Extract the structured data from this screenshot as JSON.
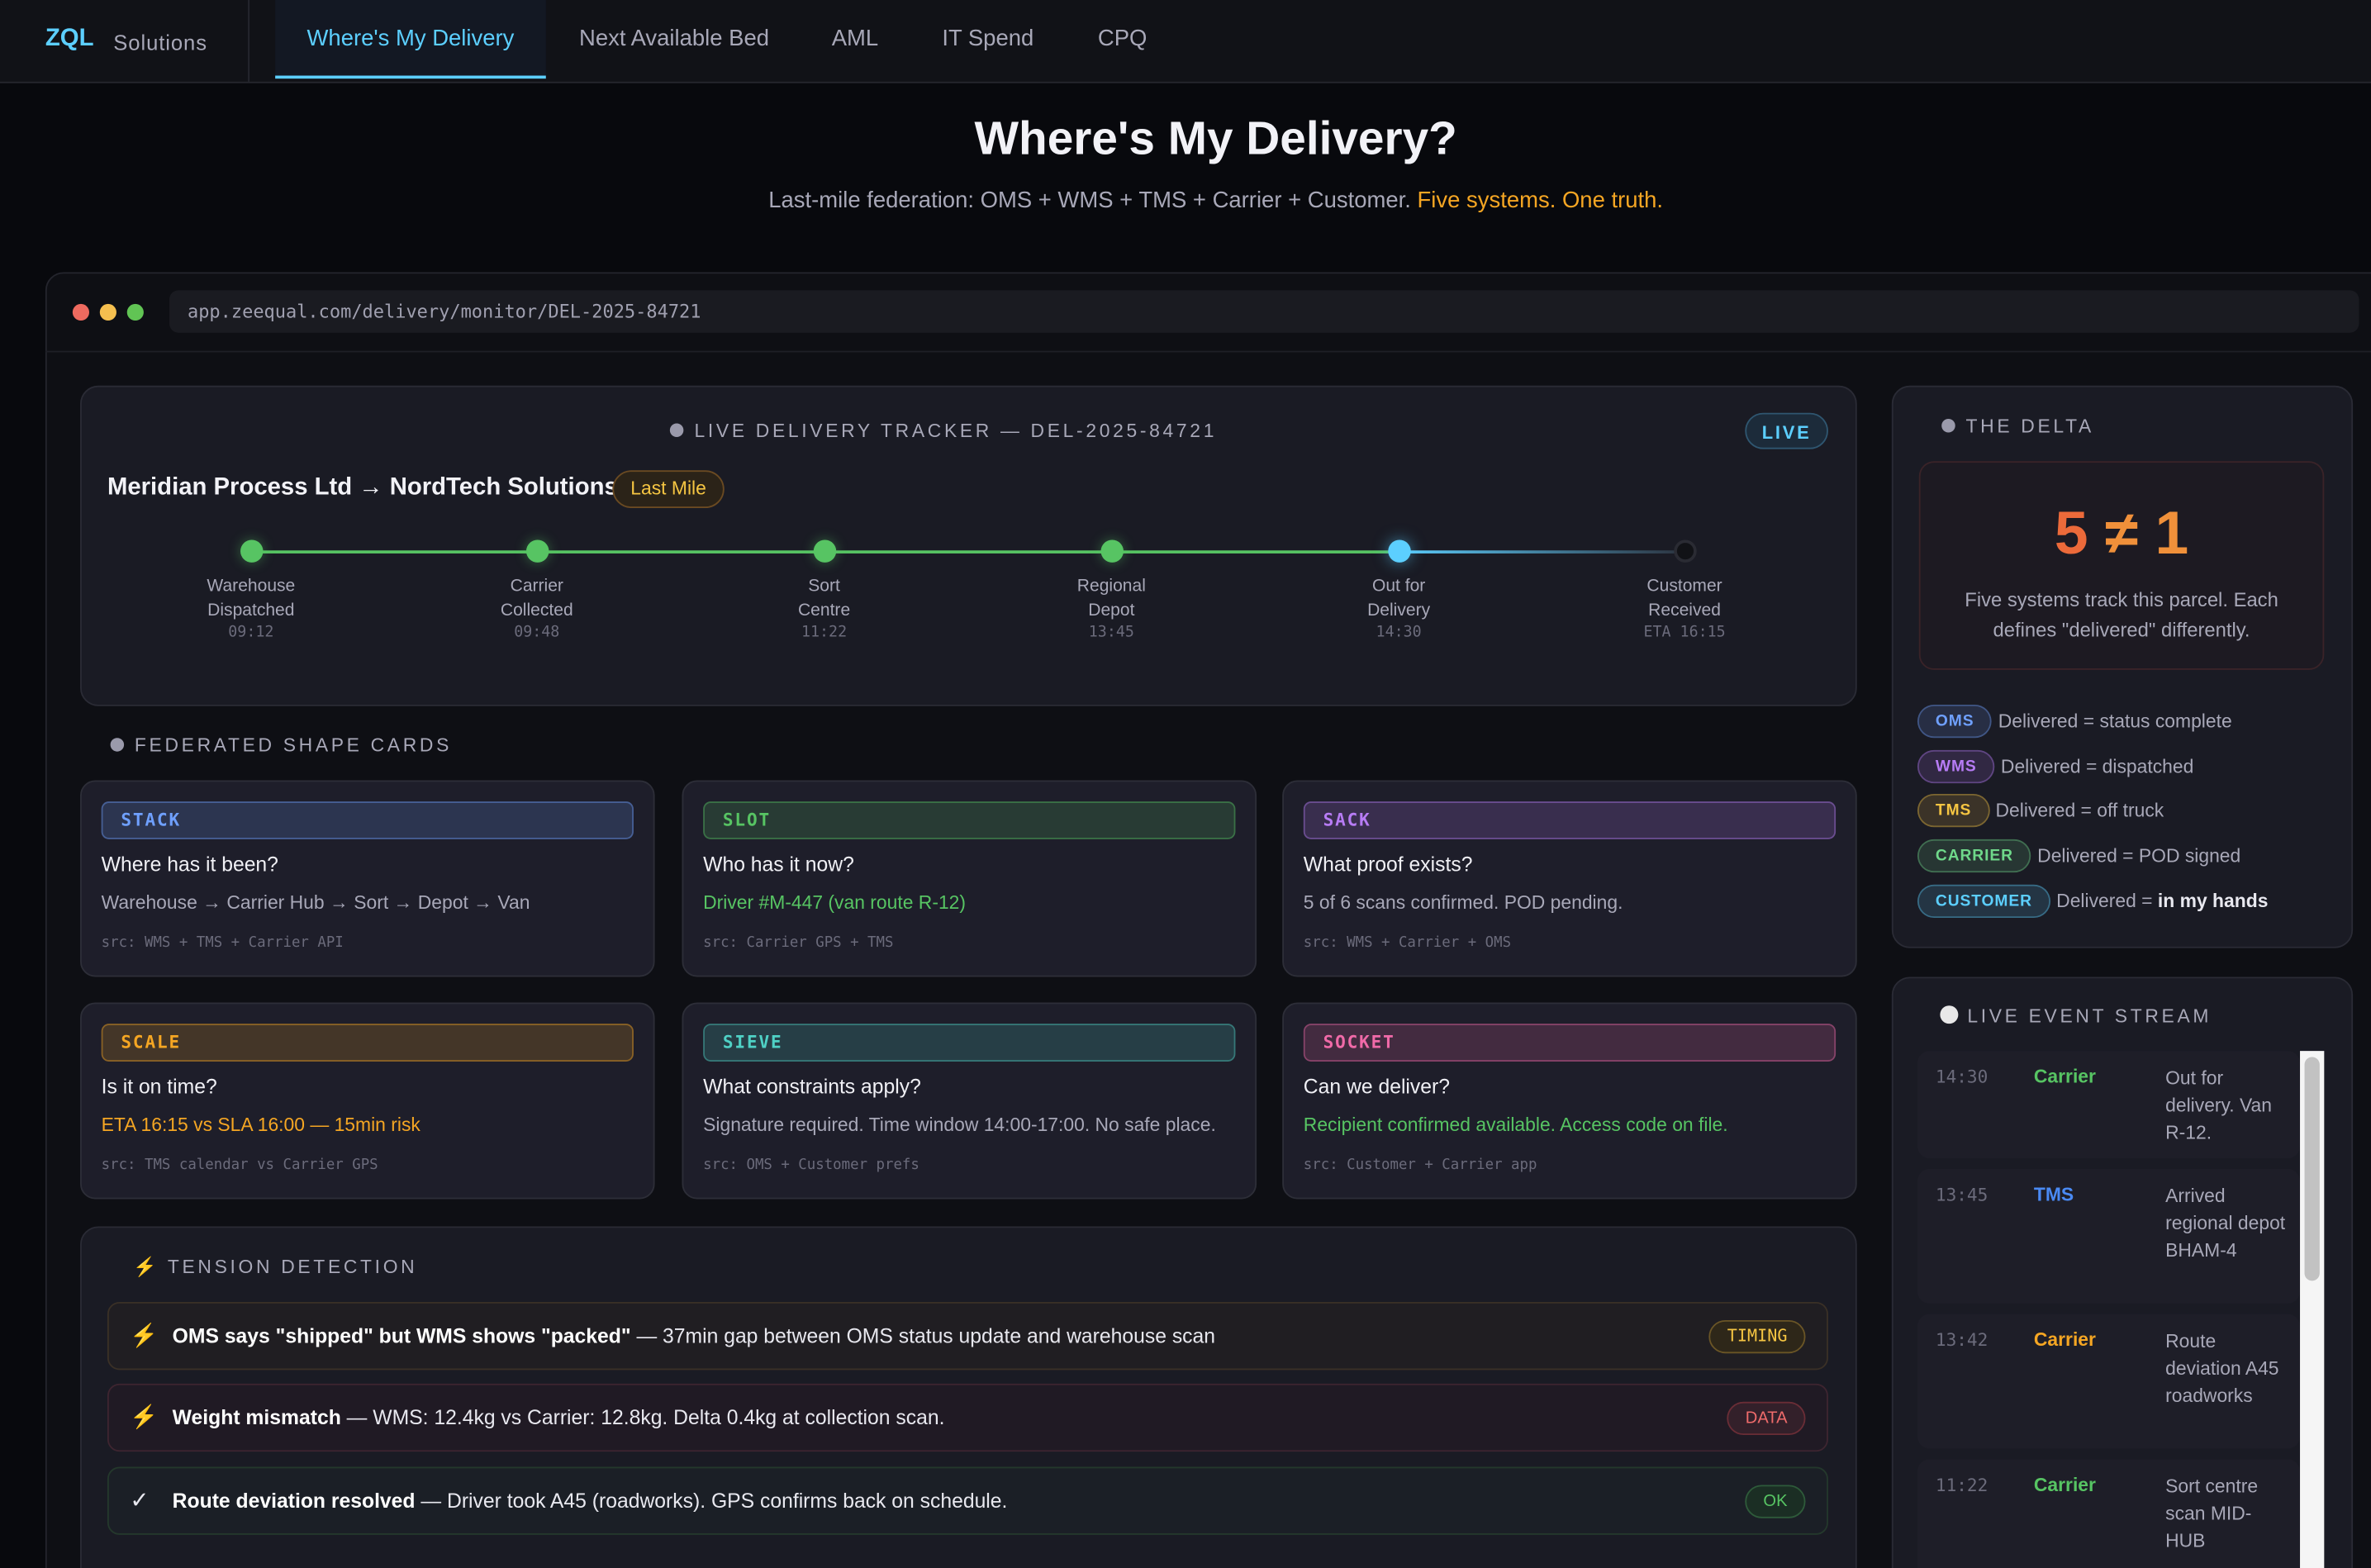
{
  "nav": {
    "logo": "ZQL",
    "logo_sub": "Solutions",
    "tabs": [
      "Where's My Delivery",
      "Next Available Bed",
      "AML",
      "IT Spend",
      "CPQ"
    ]
  },
  "header": {
    "title": "Where's My Delivery?",
    "subtitle": "Last-mile federation: OMS + WMS + TMS + Carrier + Customer.",
    "subtitle_highlight": "Five systems. One truth."
  },
  "browser": {
    "url": "app.zeequal.com/delivery/monitor/DEL-2025-84721"
  },
  "tracker": {
    "heading": "LIVE DELIVERY TRACKER — DEL-2025-84721",
    "live_badge": "LIVE",
    "route": "Meridian Process Ltd → NordTech Solutions",
    "route_badge": "Last Mile",
    "stages": [
      {
        "line1": "Warehouse",
        "line2": "Dispatched",
        "time": "09:12",
        "state": "done"
      },
      {
        "line1": "Carrier",
        "line2": "Collected",
        "time": "09:48",
        "state": "done"
      },
      {
        "line1": "Sort",
        "line2": "Centre",
        "time": "11:22",
        "state": "done"
      },
      {
        "line1": "Regional",
        "line2": "Depot",
        "time": "13:45",
        "state": "done"
      },
      {
        "line1": "Out for",
        "line2": "Delivery",
        "time": "14:30",
        "state": "current"
      },
      {
        "line1": "Customer",
        "line2": "Received",
        "time": "ETA 16:15",
        "state": "pending"
      }
    ]
  },
  "cards": {
    "heading": "FEDERATED SHAPE CARDS",
    "items": [
      {
        "tag": "STACK",
        "question": "Where has it been?",
        "detail": "Warehouse → Carrier Hub → Sort → Depot → Van",
        "src": "src: WMS + TMS + Carrier API",
        "color": "#6fa0ff"
      },
      {
        "tag": "SLOT",
        "question": "Who has it now?",
        "detail": "Driver #M-447 (van route R-12)",
        "src": "src: Carrier GPS + TMS",
        "color": "#57c463"
      },
      {
        "tag": "SACK",
        "question": "What proof exists?",
        "detail": "5 of 6 scans confirmed. POD pending.",
        "src": "src: WMS + Carrier + OMS",
        "color": "#b77cf5"
      },
      {
        "tag": "SCALE",
        "question": "Is it on time?",
        "detail": "ETA 16:15 vs SLA 16:00 — 15min risk",
        "src": "src: TMS calendar vs Carrier GPS",
        "color": "#f5a623"
      },
      {
        "tag": "SIEVE",
        "question": "What constraints apply?",
        "detail": "Signature required. Time window 14:00-17:00. No safe place.",
        "src": "src: OMS + Customer prefs",
        "color": "#4fd1c5"
      },
      {
        "tag": "SOCKET",
        "question": "Can we deliver?",
        "detail": "Recipient confirmed available. Access code on file.",
        "src": "src: Customer + Carrier app",
        "color": "#f06aa8"
      }
    ]
  },
  "tension": {
    "heading": "TENSION DETECTION",
    "rows": [
      {
        "icon": "⚡",
        "bold": "OMS says \"shipped\" but WMS shows \"packed\"",
        "text": " — 37min gap between OMS status update and warehouse scan",
        "badge": "TIMING"
      },
      {
        "icon": "⚡",
        "bold": "Weight mismatch",
        "text": " — WMS: 12.4kg vs Carrier: 12.8kg. Delta 0.4kg at collection scan.",
        "badge": "DATA"
      },
      {
        "icon": "✓",
        "bold": "Route deviation resolved",
        "text": " — Driver took A45 (roadworks). GPS confirms back on schedule.",
        "badge": "OK"
      }
    ]
  },
  "delta": {
    "heading": "THE DELTA",
    "left": "5",
    "op": "≠",
    "right": "1",
    "description": "Five systems track this parcel. Each defines \"delivered\" differently.",
    "legend": [
      {
        "system": "OMS",
        "text": "Delivered = status complete",
        "strong": ""
      },
      {
        "system": "WMS",
        "text": "Delivered = dispatched",
        "strong": ""
      },
      {
        "system": "TMS",
        "text": "Delivered = off truck",
        "strong": ""
      },
      {
        "system": "CARRIER",
        "text": "Delivered = POD signed",
        "strong": ""
      },
      {
        "system": "CUSTOMER",
        "text": "Delivered = ",
        "strong": "in my hands"
      }
    ]
  },
  "stream": {
    "heading": "LIVE EVENT STREAM",
    "events": [
      {
        "time": "14:30",
        "source": "Carrier",
        "text": "Out for delivery. Van R-12.",
        "color": "#57c463"
      },
      {
        "time": "13:45",
        "source": "TMS",
        "text": "Arrived regional depot BHAM-4",
        "color": "#4a8af4"
      },
      {
        "time": "13:42",
        "source": "Carrier",
        "text": "Route deviation A45 roadworks",
        "color": "#f5a623"
      },
      {
        "time": "11:22",
        "source": "Carrier",
        "text": "Sort centre scan MID-HUB",
        "color": "#57c463"
      }
    ]
  }
}
